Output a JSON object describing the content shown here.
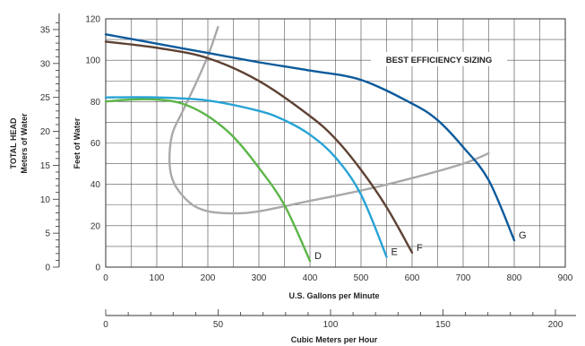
{
  "chart_data": {
    "type": "line",
    "title": "",
    "annotation": "BEST EFFICIENCY SIZING",
    "x_axis": {
      "label": "U.S. Gallons per Minute",
      "range": [
        0,
        900
      ],
      "ticks": [
        "0",
        "100",
        "200",
        "300",
        "400",
        "500",
        "600",
        "700",
        "800",
        "900"
      ]
    },
    "x_axis_secondary": {
      "label": "Cubic Meters per Hour",
      "range": [
        0,
        204.4
      ],
      "ticks": [
        "0",
        "50",
        "100",
        "150",
        "200"
      ]
    },
    "y_axis": {
      "label": "Feet of Water",
      "range": [
        0,
        120
      ],
      "ticks": [
        "0",
        "20",
        "40",
        "60",
        "80",
        "100",
        "120"
      ]
    },
    "y_axis_secondary": {
      "label_line1": "TOTAL HEAD",
      "label_line2": "Meters of Water",
      "range": [
        0,
        36.58
      ],
      "ticks": [
        "0",
        "5",
        "10",
        "15",
        "20",
        "25",
        "30",
        "35"
      ]
    },
    "grid": true,
    "series": [
      {
        "name": "D",
        "color": "#5cb548",
        "x": [
          0,
          50,
          100,
          150,
          200,
          250,
          300,
          350,
          400
        ],
        "y": [
          80,
          81,
          81,
          79,
          73,
          63,
          48,
          30,
          3
        ]
      },
      {
        "name": "E",
        "color": "#27a3d6",
        "x": [
          0,
          100,
          200,
          300,
          350,
          400,
          450,
          500,
          550
        ],
        "y": [
          82,
          82,
          80.5,
          75.5,
          71,
          64,
          53,
          35,
          5
        ]
      },
      {
        "name": "F",
        "color": "#5e4233",
        "x": [
          0,
          100,
          200,
          300,
          400,
          450,
          500,
          550,
          600
        ],
        "y": [
          109,
          106,
          101,
          90,
          73,
          62,
          47,
          29,
          7
        ]
      },
      {
        "name": "G",
        "color": "#0d5a9b",
        "x": [
          0,
          100,
          200,
          300,
          400,
          500,
          600,
          650,
          700,
          750,
          800
        ],
        "y": [
          112.5,
          108,
          103.5,
          99,
          95,
          90.5,
          79,
          71,
          58,
          42,
          13
        ]
      },
      {
        "name": "",
        "color": "#a9a9a9",
        "x": [
          220,
          200,
          175,
          150,
          130,
          125,
          135,
          165,
          200,
          250,
          300,
          400,
          500,
          600,
          700,
          750
        ],
        "y": [
          116,
          102,
          88,
          75,
          64,
          50,
          40,
          31,
          27,
          26,
          27,
          32,
          37,
          43,
          50,
          55
        ]
      }
    ]
  }
}
